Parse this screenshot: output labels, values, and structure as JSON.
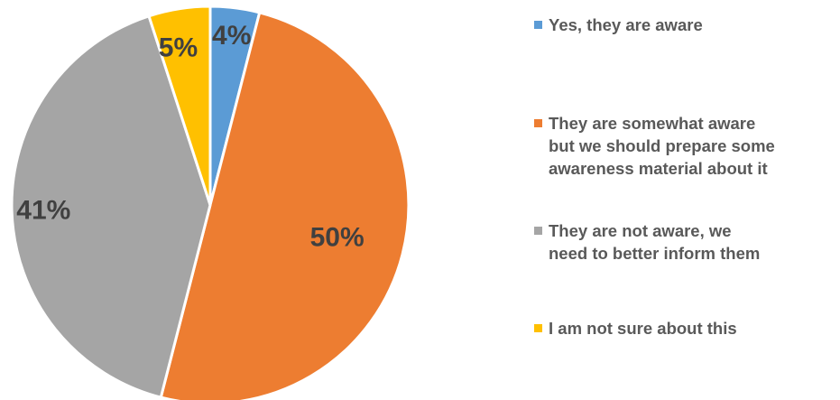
{
  "chart_data": {
    "type": "pie",
    "title": "",
    "categories": [
      "Yes, they are aware",
      "They are somewhat aware\nbut we should prepare some\nawareness material about it",
      "They are not aware, we\nneed to better inform them",
      "I am not sure about this"
    ],
    "values": [
      4,
      50,
      41,
      5
    ],
    "data_labels": [
      "4%",
      "50%",
      "41%",
      "5%"
    ],
    "colors": [
      "#5B9BD5",
      "#ED7D31",
      "#A5A5A5",
      "#FFC000"
    ],
    "legend": "right",
    "start_angle": "12 o'clock",
    "direction": "clockwise"
  }
}
